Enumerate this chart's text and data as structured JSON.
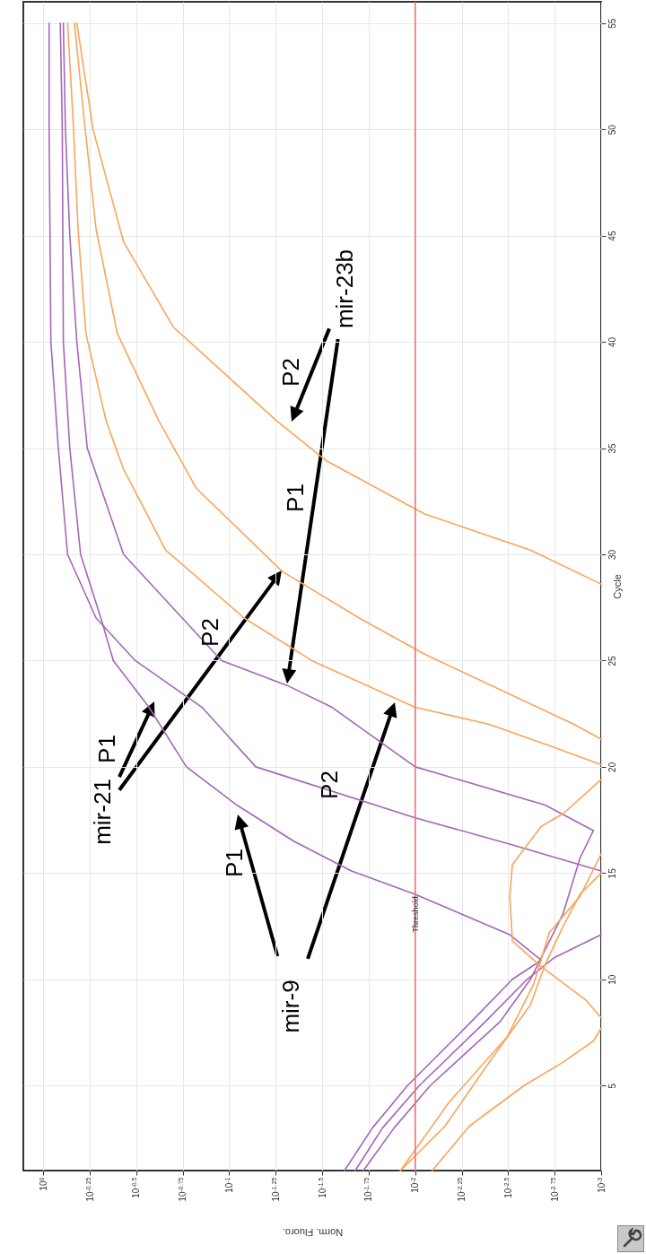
{
  "chart_data": {
    "type": "line",
    "xlabel": "Norm. Fluoro.",
    "ylabel": "Cycle",
    "xlim": [
      1.28,
      0.001
    ],
    "ylim": [
      1,
      56
    ],
    "log": "x",
    "grid": true,
    "line_style": "solid",
    "xticks": [
      {
        "value": 1,
        "label": "10$^{0}$"
      },
      {
        "value": 0.5623,
        "label": "10$^{-0.25}$"
      },
      {
        "value": 0.3162,
        "label": "10$^{-0.5}$"
      },
      {
        "value": 0.1778,
        "label": "10$^{-0.75}$"
      },
      {
        "value": 0.1,
        "label": "10$^{-1}$"
      },
      {
        "value": 0.05623,
        "label": "10$^{-1.25}$"
      },
      {
        "value": 0.03162,
        "label": "10$^{-1.5}$"
      },
      {
        "value": 0.01778,
        "label": "10$^{-1.75}$"
      },
      {
        "value": 0.01,
        "label": "10$^{-2}$"
      },
      {
        "value": 0.005623,
        "label": "10$^{-2.25}$"
      },
      {
        "value": 0.003162,
        "label": "10$^{-2.5}$"
      },
      {
        "value": 0.001778,
        "label": "10$^{-2.75}$"
      },
      {
        "value": 0.001,
        "label": "10$^{-3}$"
      }
    ],
    "yticks": [
      5,
      10,
      15,
      20,
      25,
      30,
      35,
      40,
      45,
      50,
      55
    ],
    "series": [
      {
        "color": "#a566b8",
        "values": [
          1,
          3,
          5,
          8,
          10,
          10.9,
          12.1,
          14,
          15.1,
          16.5,
          18.2,
          20,
          22.8,
          25,
          27,
          30,
          35,
          40,
          50,
          55
        ],
        "x": [
          0.024,
          0.017,
          0.011,
          0.005,
          0.003,
          0.0021,
          0.0031,
          0.01,
          0.022,
          0.045,
          0.091,
          0.17,
          0.27,
          0.42,
          0.49,
          0.63,
          0.72,
          0.78,
          0.79,
          0.81
        ]
      },
      {
        "color": "#a566b8",
        "values": [
          1,
          3,
          5,
          8,
          10,
          11,
          12.1,
          null,
          15.1,
          16.4,
          17.6,
          20,
          22.8,
          25,
          27,
          30,
          35,
          40,
          50,
          55
        ],
        "x": [
          0.021,
          0.015,
          0.0095,
          0.0042,
          0.0025,
          0.0018,
          0.001,
          null,
          0.001,
          0.0032,
          0.01,
          0.072,
          0.14,
          0.32,
          0.52,
          0.74,
          0.83,
          0.91,
          0.93,
          0.93
        ]
      },
      {
        "color": "#a566b8",
        "values": [
          1,
          3,
          5,
          8,
          10,
          13.1,
          15.7,
          17,
          18.2,
          20,
          22.8,
          23.8,
          25,
          30,
          35,
          40,
          45,
          50,
          55
        ],
        "x": [
          0.019,
          0.013,
          0.0083,
          0.0035,
          0.0024,
          0.0016,
          0.0013,
          0.0011,
          0.002,
          0.01,
          0.028,
          0.048,
          0.11,
          0.37,
          0.58,
          0.66,
          0.72,
          0.76,
          0.78
        ]
      },
      {
        "color": "#f8a55a",
        "values": [
          1,
          4.2,
          7.3,
          9.8,
          12.2,
          13.9,
          15.9,
          null,
          20.1,
          21,
          22,
          22.8,
          25,
          27,
          30.2,
          34,
          36.3,
          40.4,
          45.3,
          50.3,
          55
        ],
        "x": [
          0.012,
          0.0066,
          0.0032,
          0.0023,
          0.0019,
          0.0013,
          0.001,
          null,
          0.001,
          0.0019,
          0.004,
          0.01,
          0.036,
          0.083,
          0.22,
          0.37,
          0.46,
          0.59,
          0.65,
          0.69,
          0.74
        ]
      },
      {
        "color": "#f8a55a",
        "values": [
          1,
          3.1,
          5,
          6.1,
          7.1,
          7.7,
          null,
          8.2,
          9,
          10.6,
          11.8,
          13.9,
          15.4,
          17.2,
          17.8,
          19.4,
          null,
          21.3,
          22,
          25.3,
          27,
          29.2,
          33.1,
          36.3,
          40.4,
          45.3,
          50.3,
          55
        ],
        "x": [
          0.0081,
          0.0051,
          0.0026,
          0.0016,
          0.0011,
          0.001,
          null,
          0.001,
          0.0012,
          0.0021,
          0.003,
          0.0031,
          0.003,
          0.0021,
          0.0016,
          0.001,
          null,
          0.001,
          0.0014,
          0.0089,
          0.02,
          0.052,
          0.15,
          0.24,
          0.4,
          0.52,
          0.6,
          0.68
        ]
      },
      {
        "color": "#f8a55a",
        "values": [
          1,
          3.1,
          6.1,
          8.8,
          10.7,
          12.5,
          14,
          15,
          null,
          28.6,
          30.2,
          31.9,
          34.4,
          36.3,
          40.7,
          44.7,
          50,
          55
        ],
        "x": [
          0.012,
          0.0069,
          0.004,
          0.0024,
          0.002,
          0.0016,
          0.0013,
          0.001,
          null,
          0.001,
          0.0024,
          0.0089,
          0.03,
          0.056,
          0.2,
          0.37,
          0.54,
          0.66
        ]
      }
    ],
    "ref_lines": [
      {
        "axis": "x",
        "value": 0.01,
        "label": "Threshold",
        "color": "#f07070"
      }
    ],
    "annotations": [
      "mir-9",
      "P1",
      "P2",
      "mir-21",
      "P1",
      "P2",
      "mir-23b",
      "P1",
      "P2"
    ]
  }
}
